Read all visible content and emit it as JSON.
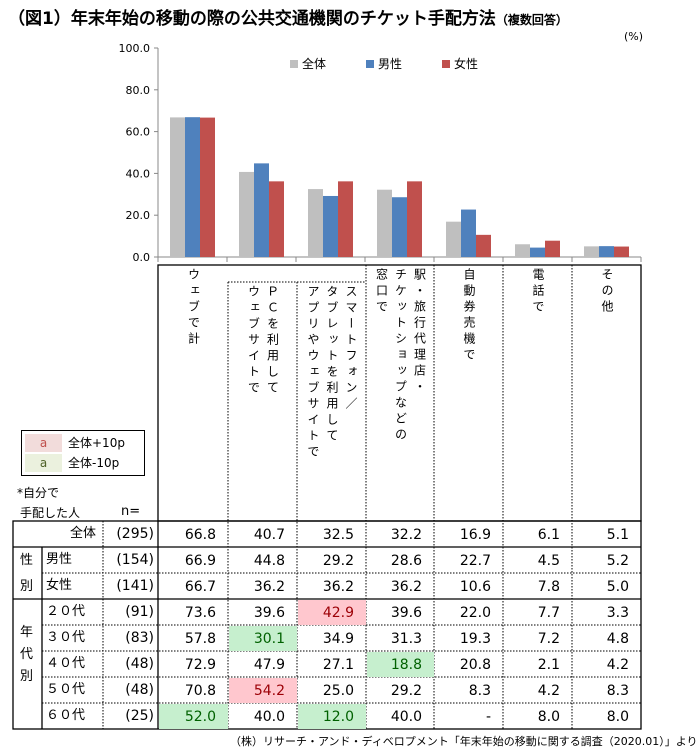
{
  "title": "（図1）年末年始の移動の際の公共交通機関のチケット手配方法",
  "title_note": "（複数回答）",
  "unit": "(%)",
  "chart_data": {
    "type": "bar",
    "ylim": [
      0,
      100
    ],
    "yticks": [
      "0.0",
      "20.0",
      "40.0",
      "60.0",
      "80.0",
      "100.0"
    ],
    "legend_position": "top",
    "categories": [
      "ウェブで計",
      "PCを利用してウェブサイトで",
      "スマートフォン／タブレットを利用してアプリやウェブサイトで",
      "駅・旅行代理店・チケットショップなどの窓口で",
      "自動券売機で",
      "電話で",
      "その他"
    ],
    "series": [
      {
        "name": "全体",
        "color": "#bfbfbf",
        "values": [
          66.8,
          40.7,
          32.5,
          32.2,
          16.9,
          6.1,
          5.1
        ]
      },
      {
        "name": "男性",
        "color": "#4f81bd",
        "values": [
          66.9,
          44.8,
          29.2,
          28.6,
          22.7,
          4.5,
          5.2
        ]
      },
      {
        "name": "女性",
        "color": "#c0504d",
        "values": [
          66.7,
          36.2,
          36.2,
          36.2,
          10.6,
          7.8,
          5.0
        ]
      }
    ]
  },
  "table": {
    "col_headers": [
      [
        "ウェブで計"
      ],
      [
        "ＰＣを利用して",
        "ウェブサイトで"
      ],
      [
        "スマートフォン／",
        "タブレットを利用して",
        "アプリやウェブサイトで"
      ],
      [
        "駅・旅行代理店・",
        "チケットショップなどの",
        "窓口で"
      ],
      [
        "自動券売機で"
      ],
      [
        "電話で"
      ],
      [
        "その他"
      ]
    ],
    "note1": "*自分で",
    "note2": "手配した人",
    "n_label": "n=",
    "group_gender": "性別",
    "group_age": "年代別",
    "legend": {
      "high_swatch": "a",
      "high_label": "全体+10p",
      "low_swatch": "a",
      "low_label": "全体-10p",
      "high_color": "#ffc7ce",
      "low_color": "#c6efce"
    },
    "rows": [
      {
        "label": "全体",
        "n": "(295)",
        "values": [
          "66.8",
          "40.7",
          "32.5",
          "32.2",
          "16.9",
          "6.1",
          "5.1"
        ],
        "flags": [
          "",
          "",
          "",
          "",
          "",
          "",
          ""
        ]
      },
      {
        "label": "男性",
        "n": "(154)",
        "values": [
          "66.9",
          "44.8",
          "29.2",
          "28.6",
          "22.7",
          "4.5",
          "5.2"
        ],
        "flags": [
          "",
          "",
          "",
          "",
          "",
          "",
          ""
        ]
      },
      {
        "label": "女性",
        "n": "(141)",
        "values": [
          "66.7",
          "36.2",
          "36.2",
          "36.2",
          "10.6",
          "7.8",
          "5.0"
        ],
        "flags": [
          "",
          "",
          "",
          "",
          "",
          "",
          ""
        ]
      },
      {
        "label": "２０代",
        "n": "(91)",
        "values": [
          "73.6",
          "39.6",
          "42.9",
          "39.6",
          "22.0",
          "7.7",
          "3.3"
        ],
        "flags": [
          "",
          "",
          "hi",
          "",
          "",
          "",
          ""
        ]
      },
      {
        "label": "３０代",
        "n": "(83)",
        "values": [
          "57.8",
          "30.1",
          "34.9",
          "31.3",
          "19.3",
          "7.2",
          "4.8"
        ],
        "flags": [
          "",
          "lo",
          "",
          "",
          "",
          "",
          ""
        ]
      },
      {
        "label": "４０代",
        "n": "(48)",
        "values": [
          "72.9",
          "47.9",
          "27.1",
          "18.8",
          "20.8",
          "2.1",
          "4.2"
        ],
        "flags": [
          "",
          "",
          "",
          "lo",
          "",
          "",
          ""
        ]
      },
      {
        "label": "５０代",
        "n": "(48)",
        "values": [
          "70.8",
          "54.2",
          "25.0",
          "29.2",
          "8.3",
          "4.2",
          "8.3"
        ],
        "flags": [
          "",
          "hi",
          "",
          "",
          "",
          "",
          ""
        ]
      },
      {
        "label": "６０代",
        "n": "(25)",
        "values": [
          "52.0",
          "40.0",
          "12.0",
          "40.0",
          "-",
          "8.0",
          "8.0"
        ],
        "flags": [
          "lo",
          "",
          "lo",
          "",
          "",
          "",
          ""
        ]
      }
    ]
  },
  "footer": "（株）リサーチ・アンド・ディベロプメント「年末年始の移動に関する調査（2020.01）」より"
}
